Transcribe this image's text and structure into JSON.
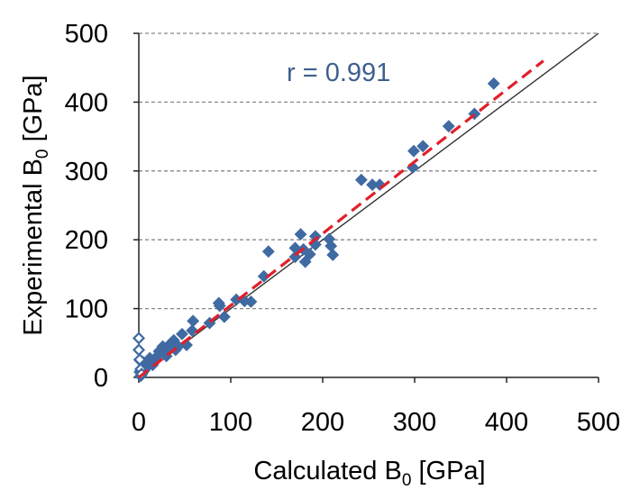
{
  "chart_data": {
    "type": "scatter",
    "title": "",
    "xlabel": {
      "main": "Calculated B",
      "sub": "0",
      "unit": " [GPa]"
    },
    "ylabel": {
      "main": "Experimental B",
      "sub": "0",
      "unit": " [GPa]"
    },
    "xlim": [
      0,
      500
    ],
    "ylim": [
      0,
      500
    ],
    "xticks": [
      0,
      100,
      200,
      300,
      400,
      500
    ],
    "yticks": [
      0,
      100,
      200,
      300,
      400,
      500
    ],
    "grid": "horizontal dashed",
    "annotation": "r = 0.991",
    "colors": {
      "marker": "#3F6AA2",
      "fit_line": "#E0202A",
      "identity_line": "#333333",
      "grid": "#888888",
      "annotation": "#3F5F8F"
    },
    "identity_line": {
      "x": [
        0,
        500
      ],
      "y": [
        0,
        500
      ]
    },
    "fit_line": {
      "x": [
        0,
        440
      ],
      "y": [
        0,
        460
      ]
    },
    "series": [
      {
        "name": "filled",
        "marker": "diamond-filled",
        "points": [
          [
            386,
            427
          ],
          [
            365,
            383
          ],
          [
            337,
            365
          ],
          [
            309,
            336
          ],
          [
            299,
            329
          ],
          [
            298,
            305
          ],
          [
            262,
            280
          ],
          [
            254,
            280
          ],
          [
            242,
            287
          ],
          [
            211,
            178
          ],
          [
            209,
            191
          ],
          [
            207,
            201
          ],
          [
            192,
            193
          ],
          [
            192,
            205
          ],
          [
            186,
            179
          ],
          [
            181,
            168
          ],
          [
            179,
            186
          ],
          [
            176,
            208
          ],
          [
            170,
            175
          ],
          [
            170,
            188
          ],
          [
            141,
            183
          ],
          [
            136,
            147
          ],
          [
            122,
            110
          ],
          [
            115,
            111
          ],
          [
            106,
            113
          ],
          [
            93,
            88
          ],
          [
            88,
            104
          ],
          [
            87,
            108
          ],
          [
            77,
            79
          ],
          [
            59,
            82
          ],
          [
            58,
            68
          ],
          [
            52,
            47
          ],
          [
            47,
            63
          ],
          [
            43,
            45
          ],
          [
            40,
            40
          ],
          [
            38,
            54
          ],
          [
            35,
            50
          ],
          [
            33,
            43
          ],
          [
            30,
            31
          ],
          [
            28,
            42
          ],
          [
            26,
            45
          ],
          [
            25,
            37
          ],
          [
            22,
            38
          ],
          [
            20,
            31
          ],
          [
            18,
            27
          ],
          [
            16,
            21
          ],
          [
            15,
            18
          ],
          [
            13,
            25
          ],
          [
            12,
            28
          ],
          [
            10,
            17
          ],
          [
            8,
            16
          ],
          [
            6,
            10
          ],
          [
            5,
            22
          ],
          [
            4,
            7
          ],
          [
            3,
            4
          ],
          [
            2,
            2
          ],
          [
            1,
            25
          ],
          [
            1,
            8
          ]
        ]
      },
      {
        "name": "open",
        "marker": "diamond-open",
        "points": [
          [
            0,
            57
          ],
          [
            0,
            40
          ],
          [
            1,
            26
          ],
          [
            2,
            12
          ],
          [
            3,
            5
          ]
        ]
      }
    ]
  }
}
